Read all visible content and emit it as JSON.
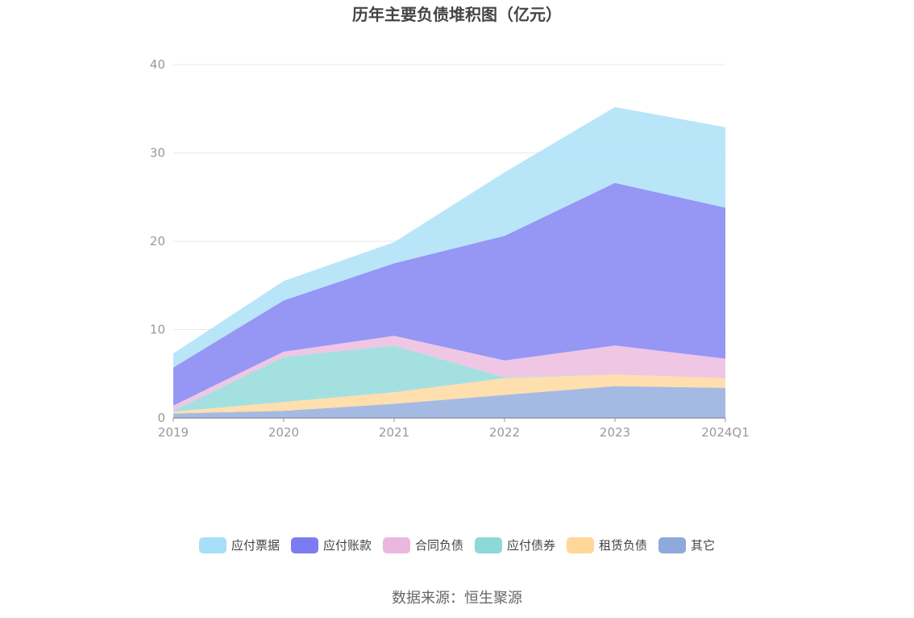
{
  "chart_data": {
    "type": "area",
    "stacked": true,
    "title": "历年主要负债堆积图（亿元）",
    "categories": [
      "2019",
      "2020",
      "2021",
      "2022",
      "2023",
      "2024Q1"
    ],
    "ylim": [
      0,
      40
    ],
    "yticks": [
      0,
      10,
      20,
      30,
      40
    ],
    "grid": true,
    "legend_position": "bottom",
    "series": [
      {
        "name": "其它",
        "color": "#8FA9DC",
        "values": [
          0.5,
          0.8,
          1.6,
          2.6,
          3.6,
          3.4
        ]
      },
      {
        "name": "租赁负债",
        "color": "#FFD79A",
        "values": [
          0.2,
          1.0,
          1.3,
          1.9,
          1.3,
          1.1
        ]
      },
      {
        "name": "应付债券",
        "color": "#8ED8DA",
        "values": [
          0.1,
          5.1,
          5.3,
          0.1,
          0.0,
          0.0
        ]
      },
      {
        "name": "合同负债",
        "color": "#EBB8DD",
        "values": [
          0.6,
          0.6,
          1.1,
          1.9,
          3.3,
          2.2
        ]
      },
      {
        "name": "应付账款",
        "color": "#7C7CF2",
        "values": [
          4.3,
          5.8,
          8.2,
          14.1,
          18.4,
          17.1
        ]
      },
      {
        "name": "应付票据",
        "color": "#A8DEF8",
        "values": [
          1.6,
          2.2,
          2.4,
          7.2,
          8.6,
          9.1
        ]
      }
    ]
  },
  "legend_order": [
    "应付票据",
    "应付账款",
    "合同负债",
    "应付债券",
    "租赁负债",
    "其它"
  ],
  "source": "数据来源：恒生聚源"
}
